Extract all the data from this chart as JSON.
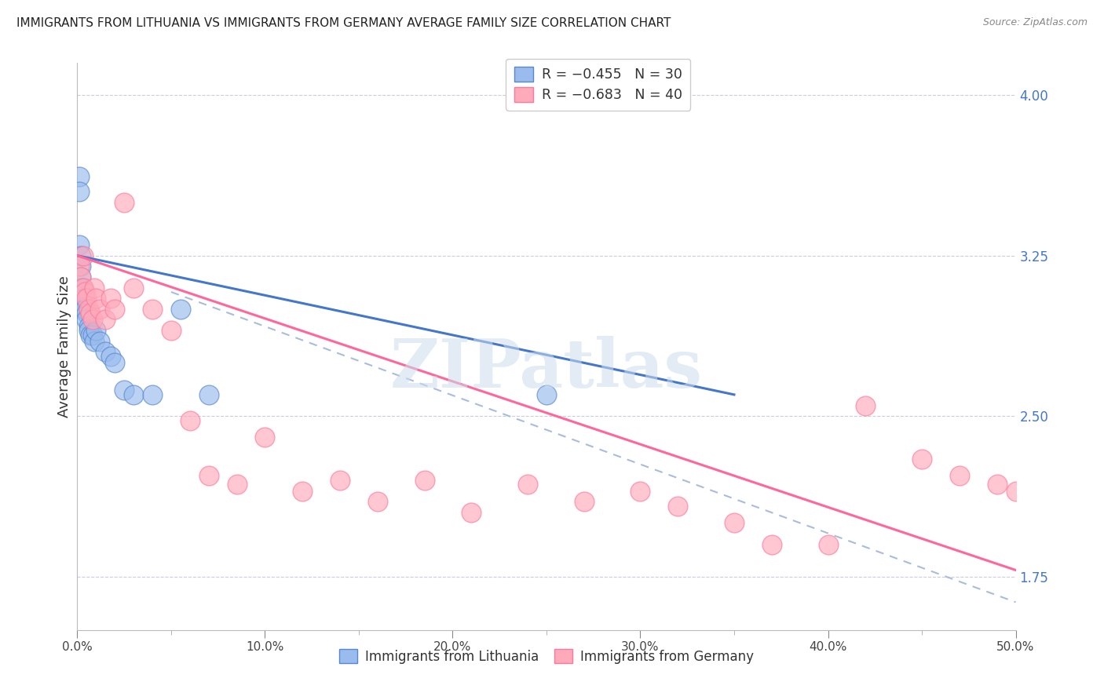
{
  "title": "IMMIGRANTS FROM LITHUANIA VS IMMIGRANTS FROM GERMANY AVERAGE FAMILY SIZE CORRELATION CHART",
  "source": "Source: ZipAtlas.com",
  "ylabel": "Average Family Size",
  "xlim": [
    0.0,
    0.5
  ],
  "ylim": [
    1.5,
    4.15
  ],
  "right_yticks": [
    1.75,
    2.5,
    3.25,
    4.0
  ],
  "x_ticks": [
    0.0,
    0.1,
    0.2,
    0.3,
    0.4,
    0.5
  ],
  "x_ticks_labels": [
    "0.0%",
    "10.0%",
    "20.0%",
    "30.0%",
    "40.0%",
    "50.0%"
  ],
  "background_color": "#ffffff",
  "watermark": "ZIPatlas",
  "legend_r1": "R = −0.455",
  "legend_n1": "N = 30",
  "legend_r2": "R = −0.683",
  "legend_n2": "N = 40",
  "color_blue_fill": "#99BBEE",
  "color_blue_edge": "#5588CC",
  "color_blue_line": "#4477CC",
  "color_pink_fill": "#FFAABB",
  "color_pink_edge": "#FF7799",
  "color_pink_line": "#FF6699",
  "color_dashed": "#AABBDD",
  "lit_x": [
    0.001,
    0.001,
    0.001,
    0.002,
    0.002,
    0.002,
    0.002,
    0.003,
    0.003,
    0.003,
    0.004,
    0.004,
    0.005,
    0.005,
    0.006,
    0.006,
    0.007,
    0.008,
    0.009,
    0.01,
    0.012,
    0.015,
    0.018,
    0.02,
    0.025,
    0.03,
    0.04,
    0.055,
    0.07,
    0.25
  ],
  "lit_y": [
    3.62,
    3.55,
    3.3,
    3.25,
    3.2,
    3.15,
    3.1,
    3.1,
    3.05,
    3.0,
    3.05,
    3.0,
    2.98,
    2.95,
    2.92,
    2.9,
    2.88,
    2.88,
    2.85,
    2.9,
    2.85,
    2.8,
    2.78,
    2.75,
    2.62,
    2.6,
    2.6,
    3.0,
    2.6,
    2.6
  ],
  "ger_x": [
    0.001,
    0.002,
    0.003,
    0.003,
    0.004,
    0.005,
    0.006,
    0.007,
    0.008,
    0.009,
    0.01,
    0.012,
    0.015,
    0.018,
    0.02,
    0.025,
    0.03,
    0.04,
    0.05,
    0.06,
    0.07,
    0.085,
    0.1,
    0.12,
    0.14,
    0.16,
    0.185,
    0.21,
    0.24,
    0.27,
    0.3,
    0.32,
    0.35,
    0.37,
    0.4,
    0.42,
    0.45,
    0.47,
    0.49,
    0.5
  ],
  "ger_y": [
    3.2,
    3.15,
    3.25,
    3.1,
    3.08,
    3.05,
    3.0,
    2.98,
    2.95,
    3.1,
    3.05,
    3.0,
    2.95,
    3.05,
    3.0,
    3.5,
    3.1,
    3.0,
    2.9,
    2.48,
    2.22,
    2.18,
    2.4,
    2.15,
    2.2,
    2.1,
    2.2,
    2.05,
    2.18,
    2.1,
    2.15,
    2.08,
    2.0,
    1.9,
    1.9,
    2.55,
    2.3,
    2.22,
    2.18,
    2.15
  ]
}
